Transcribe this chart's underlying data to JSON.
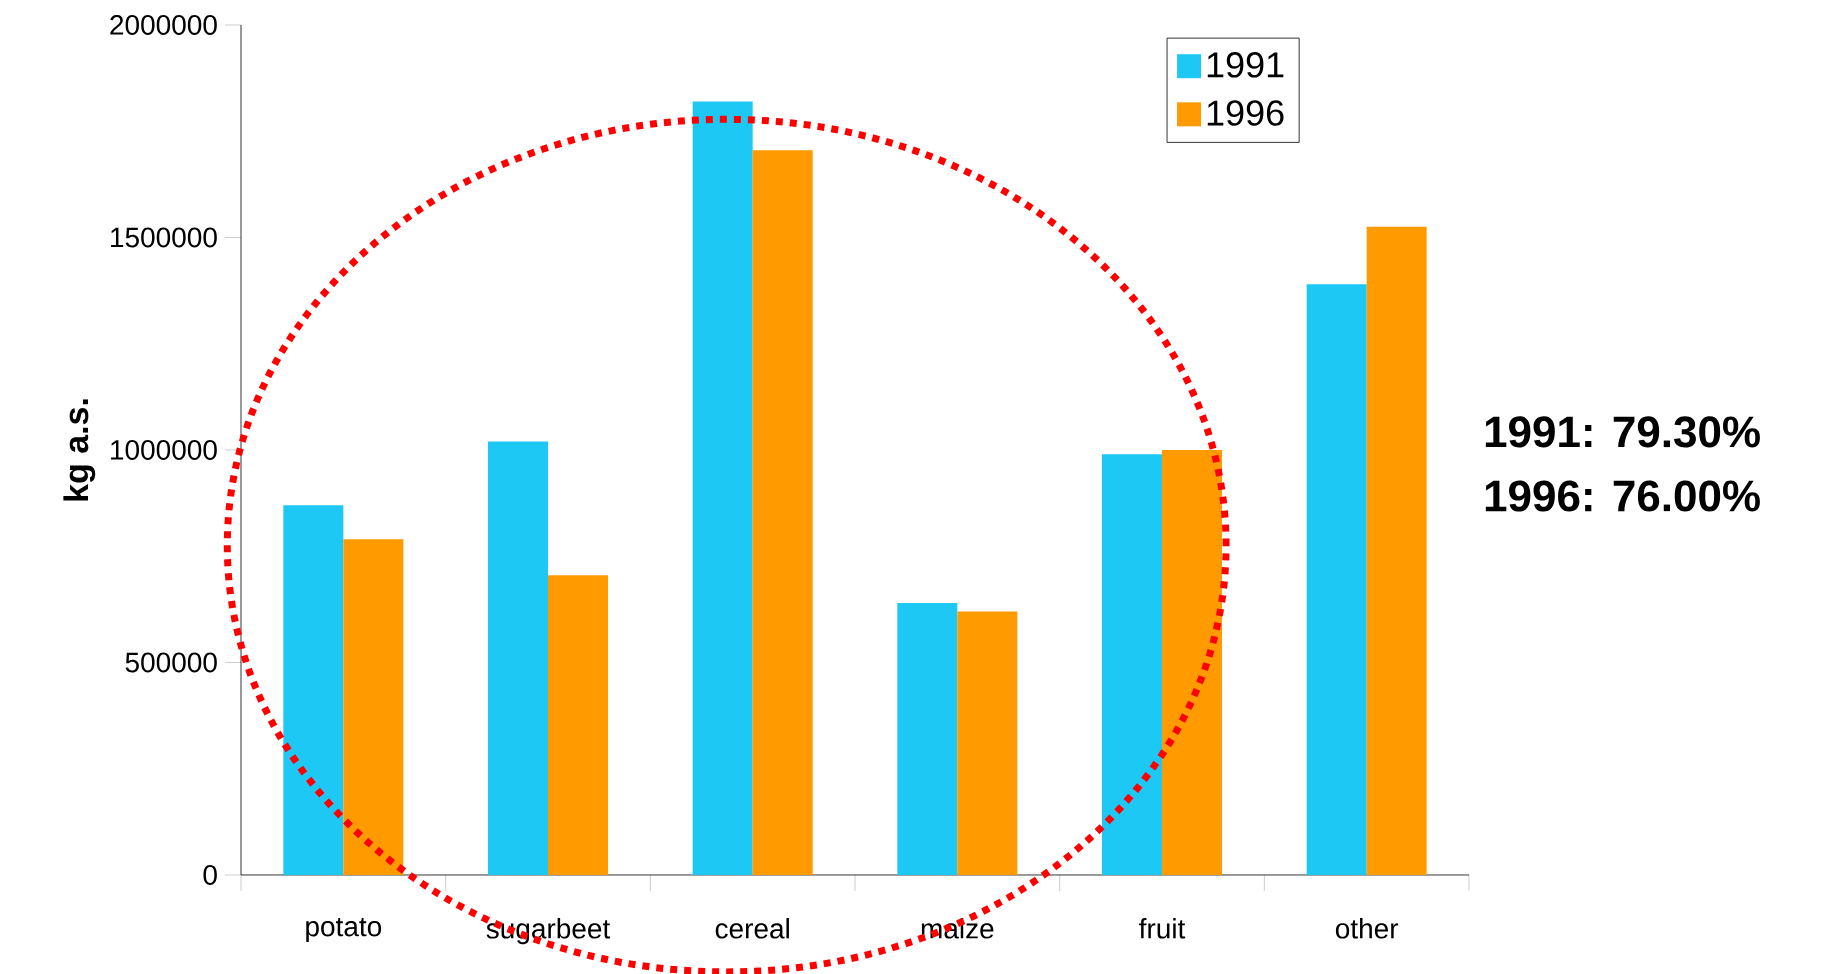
{
  "chart_data": {
    "type": "bar",
    "ylabel": "kg a.s.",
    "categories": [
      "potato",
      "sugarbeet",
      "cereal",
      "maize",
      "fruit",
      "other"
    ],
    "series": [
      {
        "name": "1991",
        "color": "#1ec8f5",
        "values": [
          870000,
          1020000,
          1820000,
          640000,
          990000,
          1390000
        ]
      },
      {
        "name": "1996",
        "color": "#ff9a00",
        "values": [
          790000,
          705000,
          1705000,
          620000,
          1000000,
          1525000
        ]
      }
    ],
    "ylim": [
      0,
      2000000
    ],
    "yticks": [
      0,
      500000,
      1000000,
      1500000,
      2000000
    ],
    "legend": "top right",
    "annotations": [
      "1991: 79.30%",
      "1996: 76.00%"
    ]
  }
}
